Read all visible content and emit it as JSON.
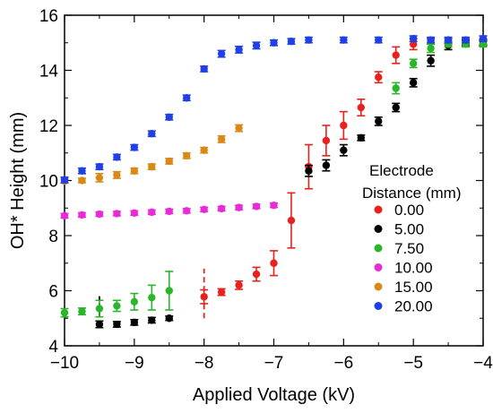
{
  "chart_data": {
    "type": "scatter",
    "title": "",
    "xlabel": "Applied Voltage (kV)",
    "ylabel": "OH* Height (mm)",
    "xlim": [
      -10,
      -4
    ],
    "ylim": [
      4,
      16
    ],
    "x_ticks": [
      -10,
      -9,
      -8,
      -7,
      -6,
      -5,
      -4
    ],
    "x_tick_labels": [
      "−10",
      "−9",
      "−8",
      "−7",
      "−6",
      "−5",
      "−4"
    ],
    "y_ticks": [
      4,
      6,
      8,
      10,
      12,
      14,
      16
    ],
    "y_tick_labels": [
      "4",
      "6",
      "8",
      "10",
      "12",
      "14",
      "16"
    ],
    "grid": false,
    "legend": {
      "title_line1": "Electrode",
      "title_line2": "Distance (mm)",
      "position": "right"
    },
    "series": [
      {
        "name": "0.00",
        "color": "#e8211c",
        "points": [
          {
            "x": -8.0,
            "y": 5.78,
            "err": 0.25
          },
          {
            "x": -7.75,
            "y": 5.95,
            "err": 0.12
          },
          {
            "x": -7.5,
            "y": 6.2,
            "err": 0.15
          },
          {
            "x": -7.25,
            "y": 6.6,
            "err": 0.25
          },
          {
            "x": -7.0,
            "y": 7.0,
            "err": 0.45
          },
          {
            "x": -6.75,
            "y": 8.55,
            "err": 1.0
          },
          {
            "x": -6.5,
            "y": 10.5,
            "err": 0.8
          },
          {
            "x": -6.25,
            "y": 11.45,
            "err": 0.55
          },
          {
            "x": -6.0,
            "y": 12.0,
            "err": 0.5
          },
          {
            "x": -5.75,
            "y": 12.65,
            "err": 0.3
          },
          {
            "x": -5.5,
            "y": 13.75,
            "err": 0.2
          },
          {
            "x": -5.25,
            "y": 14.55,
            "err": 0.3
          },
          {
            "x": -5.0,
            "y": 14.95,
            "err": 0.2
          },
          {
            "x": -4.75,
            "y": 15.05,
            "err": 0.1
          },
          {
            "x": -4.5,
            "y": 15.05,
            "err": 0.1
          },
          {
            "x": -4.25,
            "y": 15.05,
            "err": 0.1
          },
          {
            "x": -4.0,
            "y": 15.05,
            "err": 0.1
          }
        ],
        "dashed_segment": {
          "x": -8.0,
          "y_low": 5.0,
          "y_high": 6.8
        }
      },
      {
        "name": "5.00",
        "color": "#000000",
        "points": [
          {
            "x": -9.5,
            "y": 4.78,
            "err": 0.12
          },
          {
            "x": -9.25,
            "y": 4.78,
            "err": 0.1
          },
          {
            "x": -9.0,
            "y": 4.85,
            "err": 0.1
          },
          {
            "x": -8.75,
            "y": 4.93,
            "err": 0.1
          },
          {
            "x": -8.5,
            "y": 5.0,
            "err": 0.08
          },
          {
            "x": -6.5,
            "y": 10.35,
            "err": 0.2
          },
          {
            "x": -6.25,
            "y": 10.55,
            "err": 0.2
          },
          {
            "x": -6.0,
            "y": 11.1,
            "err": 0.2
          },
          {
            "x": -5.75,
            "y": 11.55,
            "err": 0.1
          },
          {
            "x": -5.5,
            "y": 12.15,
            "err": 0.15
          },
          {
            "x": -5.25,
            "y": 12.65,
            "err": 0.15
          },
          {
            "x": -5.0,
            "y": 13.55,
            "err": 0.15
          },
          {
            "x": -4.75,
            "y": 14.35,
            "err": 0.2
          },
          {
            "x": -4.5,
            "y": 14.9,
            "err": 0.15
          },
          {
            "x": -4.25,
            "y": 15.0,
            "err": 0.1
          },
          {
            "x": -4.0,
            "y": 15.0,
            "err": 0.1
          }
        ],
        "dashed_segment": {
          "x": -9.5,
          "y_low": 4.7,
          "y_high": 5.8
        }
      },
      {
        "name": "7.50",
        "color": "#2bb52b",
        "points": [
          {
            "x": -10.0,
            "y": 5.2,
            "err": 0.15
          },
          {
            "x": -9.75,
            "y": 5.25,
            "err": 0.12
          },
          {
            "x": -9.5,
            "y": 5.35,
            "err": 0.3
          },
          {
            "x": -9.25,
            "y": 5.45,
            "err": 0.2
          },
          {
            "x": -9.0,
            "y": 5.6,
            "err": 0.3
          },
          {
            "x": -8.75,
            "y": 5.75,
            "err": 0.45
          },
          {
            "x": -8.5,
            "y": 6.0,
            "err": 0.7
          },
          {
            "x": -5.25,
            "y": 13.35,
            "err": 0.2
          },
          {
            "x": -5.0,
            "y": 14.25,
            "err": 0.15
          },
          {
            "x": -4.75,
            "y": 14.8,
            "err": 0.15
          },
          {
            "x": -4.5,
            "y": 14.95,
            "err": 0.1
          },
          {
            "x": -4.25,
            "y": 14.95,
            "err": 0.1
          },
          {
            "x": -4.0,
            "y": 14.95,
            "err": 0.1
          }
        ]
      },
      {
        "name": "10.00",
        "color": "#e82bd6",
        "points": [
          {
            "x": -10.0,
            "y": 8.72,
            "err": 0.08
          },
          {
            "x": -9.75,
            "y": 8.75,
            "err": 0.08
          },
          {
            "x": -9.5,
            "y": 8.78,
            "err": 0.08
          },
          {
            "x": -9.25,
            "y": 8.8,
            "err": 0.08
          },
          {
            "x": -9.0,
            "y": 8.82,
            "err": 0.08
          },
          {
            "x": -8.75,
            "y": 8.85,
            "err": 0.08
          },
          {
            "x": -8.5,
            "y": 8.88,
            "err": 0.08
          },
          {
            "x": -8.25,
            "y": 8.9,
            "err": 0.08
          },
          {
            "x": -8.0,
            "y": 8.95,
            "err": 0.08
          },
          {
            "x": -7.75,
            "y": 8.98,
            "err": 0.08
          },
          {
            "x": -7.5,
            "y": 9.02,
            "err": 0.08
          },
          {
            "x": -7.25,
            "y": 9.06,
            "err": 0.08
          },
          {
            "x": -7.0,
            "y": 9.1,
            "err": 0.08
          }
        ]
      },
      {
        "name": "15.00",
        "color": "#d98a16",
        "points": [
          {
            "x": -10.0,
            "y": 9.98,
            "err": 0.08
          },
          {
            "x": -9.75,
            "y": 10.0,
            "err": 0.08
          },
          {
            "x": -9.5,
            "y": 10.1,
            "err": 0.15
          },
          {
            "x": -9.25,
            "y": 10.2,
            "err": 0.12
          },
          {
            "x": -9.0,
            "y": 10.35,
            "err": 0.1
          },
          {
            "x": -8.75,
            "y": 10.5,
            "err": 0.1
          },
          {
            "x": -8.5,
            "y": 10.7,
            "err": 0.1
          },
          {
            "x": -8.25,
            "y": 10.9,
            "err": 0.1
          },
          {
            "x": -8.0,
            "y": 11.1,
            "err": 0.1
          },
          {
            "x": -7.75,
            "y": 11.5,
            "err": 0.12
          },
          {
            "x": -7.5,
            "y": 11.9,
            "err": 0.12
          }
        ]
      },
      {
        "name": "20.00",
        "color": "#1f3fe8",
        "points": [
          {
            "x": -10.0,
            "y": 10.02,
            "err": 0.1
          },
          {
            "x": -9.75,
            "y": 10.35,
            "err": 0.1
          },
          {
            "x": -9.5,
            "y": 10.5,
            "err": 0.1
          },
          {
            "x": -9.25,
            "y": 10.85,
            "err": 0.1
          },
          {
            "x": -9.0,
            "y": 11.2,
            "err": 0.1
          },
          {
            "x": -8.75,
            "y": 11.7,
            "err": 0.1
          },
          {
            "x": -8.5,
            "y": 12.3,
            "err": 0.1
          },
          {
            "x": -8.25,
            "y": 13.0,
            "err": 0.1
          },
          {
            "x": -8.0,
            "y": 14.05,
            "err": 0.1
          },
          {
            "x": -7.75,
            "y": 14.6,
            "err": 0.12
          },
          {
            "x": -7.5,
            "y": 14.75,
            "err": 0.12
          },
          {
            "x": -7.25,
            "y": 14.9,
            "err": 0.12
          },
          {
            "x": -7.0,
            "y": 15.0,
            "err": 0.1
          },
          {
            "x": -6.75,
            "y": 15.05,
            "err": 0.1
          },
          {
            "x": -6.5,
            "y": 15.1,
            "err": 0.1
          },
          {
            "x": -6.0,
            "y": 15.1,
            "err": 0.1
          },
          {
            "x": -5.5,
            "y": 15.1,
            "err": 0.1
          },
          {
            "x": -5.0,
            "y": 15.15,
            "err": 0.1
          },
          {
            "x": -4.75,
            "y": 15.1,
            "err": 0.1
          },
          {
            "x": -4.5,
            "y": 15.1,
            "err": 0.1
          },
          {
            "x": -4.25,
            "y": 15.1,
            "err": 0.1
          },
          {
            "x": -4.0,
            "y": 15.15,
            "err": 0.1
          }
        ]
      }
    ]
  }
}
